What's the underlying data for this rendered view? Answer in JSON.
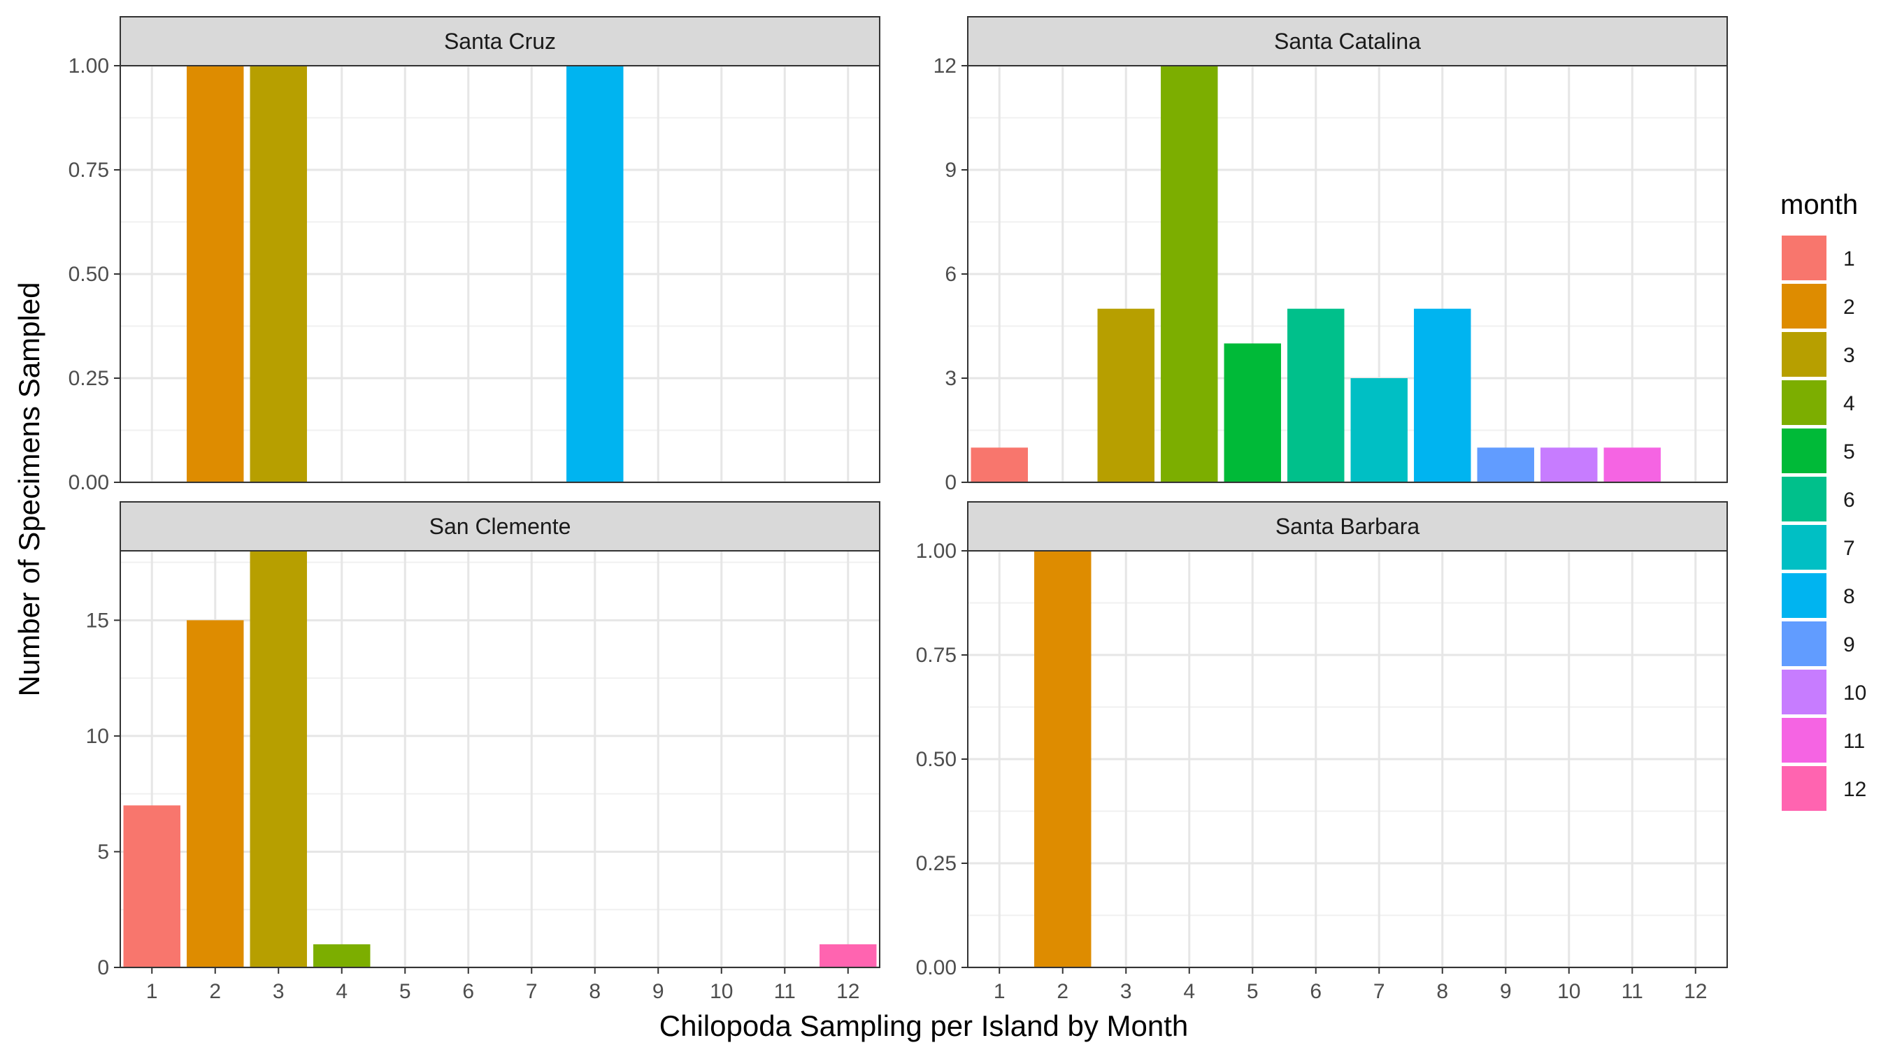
{
  "chart_data": {
    "type": "bar",
    "facet_layout": "2x2 grid",
    "xlabel": "Chilopoda Sampling per Island by Month",
    "ylabel": "Number of Specimens Sampled",
    "x_categories": [
      "1",
      "2",
      "3",
      "4",
      "5",
      "6",
      "7",
      "8",
      "9",
      "10",
      "11",
      "12"
    ],
    "legend": {
      "title": "month",
      "placement": "right",
      "entries": [
        {
          "label": "1",
          "color": "#F8766D"
        },
        {
          "label": "2",
          "color": "#DE8C00"
        },
        {
          "label": "3",
          "color": "#B79F00"
        },
        {
          "label": "4",
          "color": "#7CAE00"
        },
        {
          "label": "5",
          "color": "#00BA38"
        },
        {
          "label": "6",
          "color": "#00C08B"
        },
        {
          "label": "7",
          "color": "#00BFC4"
        },
        {
          "label": "8",
          "color": "#00B4F0"
        },
        {
          "label": "9",
          "color": "#619CFF"
        },
        {
          "label": "10",
          "color": "#C77CFF"
        },
        {
          "label": "11",
          "color": "#F564E3"
        },
        {
          "label": "12",
          "color": "#FF64B0"
        }
      ]
    },
    "grid": true,
    "panels": [
      {
        "title": "Santa Cruz",
        "ylim": [
          0,
          1
        ],
        "yticks": [
          "0.00",
          "0.25",
          "0.50",
          "0.75",
          "1.00"
        ],
        "ytick_values": [
          0,
          0.25,
          0.5,
          0.75,
          1
        ],
        "show_x_ticks": false,
        "bars": [
          {
            "month": 2,
            "value": 1
          },
          {
            "month": 3,
            "value": 1
          },
          {
            "month": 8,
            "value": 1
          }
        ]
      },
      {
        "title": "Santa Catalina",
        "ylim": [
          0,
          12
        ],
        "yticks": [
          "0",
          "3",
          "6",
          "9",
          "12"
        ],
        "ytick_values": [
          0,
          3,
          6,
          9,
          12
        ],
        "show_x_ticks": false,
        "bars": [
          {
            "month": 1,
            "value": 1
          },
          {
            "month": 3,
            "value": 5
          },
          {
            "month": 4,
            "value": 12
          },
          {
            "month": 5,
            "value": 4
          },
          {
            "month": 6,
            "value": 5
          },
          {
            "month": 7,
            "value": 3
          },
          {
            "month": 8,
            "value": 5
          },
          {
            "month": 9,
            "value": 1
          },
          {
            "month": 10,
            "value": 1
          },
          {
            "month": 11,
            "value": 1
          }
        ]
      },
      {
        "title": "San Clemente",
        "ylim": [
          0,
          18
        ],
        "yticks": [
          "0",
          "5",
          "10",
          "15"
        ],
        "ytick_values": [
          0,
          5,
          10,
          15
        ],
        "show_x_ticks": true,
        "bars": [
          {
            "month": 1,
            "value": 7
          },
          {
            "month": 2,
            "value": 15
          },
          {
            "month": 3,
            "value": 18
          },
          {
            "month": 4,
            "value": 1
          },
          {
            "month": 12,
            "value": 1
          }
        ]
      },
      {
        "title": "Santa Barbara",
        "ylim": [
          0,
          1
        ],
        "yticks": [
          "0.00",
          "0.25",
          "0.50",
          "0.75",
          "1.00"
        ],
        "ytick_values": [
          0,
          0.25,
          0.5,
          0.75,
          1
        ],
        "show_x_ticks": true,
        "bars": [
          {
            "month": 2,
            "value": 1
          }
        ]
      }
    ]
  }
}
